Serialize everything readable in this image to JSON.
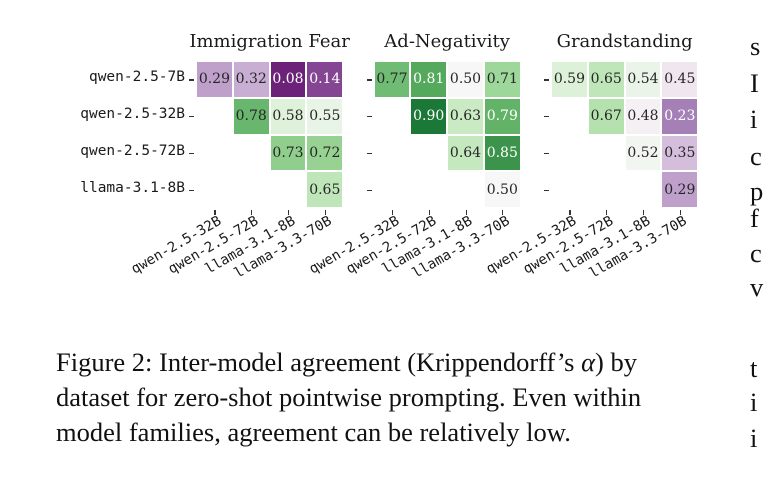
{
  "chart_data": {
    "type": "heatmap",
    "title": "Inter-model agreement (Krippendorff's alpha) by dataset",
    "colormap": "PRGn",
    "color_center": 0.5,
    "row_labels": [
      "qwen-2.5-7B",
      "qwen-2.5-32B",
      "qwen-2.5-72B",
      "llama-3.1-8B"
    ],
    "col_labels": [
      "qwen-2.5-32B",
      "qwen-2.5-72B",
      "llama-3.1-8B",
      "llama-3.3-70B"
    ],
    "panels": [
      {
        "title": "Immigration Fear",
        "values": [
          [
            0.29,
            0.32,
            0.08,
            0.14
          ],
          [
            null,
            0.78,
            0.58,
            0.55
          ],
          [
            null,
            null,
            0.73,
            0.72
          ],
          [
            null,
            null,
            null,
            0.65
          ]
        ]
      },
      {
        "title": "Ad-Negativity",
        "values": [
          [
            0.77,
            0.81,
            0.5,
            0.71
          ],
          [
            null,
            0.9,
            0.63,
            0.79
          ],
          [
            null,
            null,
            0.64,
            0.85
          ],
          [
            null,
            null,
            null,
            0.5
          ]
        ]
      },
      {
        "title": "Grandstanding",
        "values": [
          [
            0.59,
            0.65,
            0.54,
            0.45
          ],
          [
            null,
            0.67,
            0.48,
            0.23
          ],
          [
            null,
            null,
            0.52,
            0.35
          ],
          [
            null,
            null,
            null,
            0.29
          ]
        ]
      }
    ]
  },
  "caption": {
    "line1_prefix": "Figure 2: Inter-model agreement (Krippendorff’s ",
    "alpha": "α",
    "line1_suffix": ") by",
    "line2": "dataset for zero-shot pointwise prompting. Even within",
    "line3": "model families, agreement can be relatively low."
  },
  "right_column_clipped_chars": [
    "s",
    "I",
    "i",
    "c",
    "p",
    "f",
    "c",
    "v",
    "t",
    "i",
    "i"
  ]
}
